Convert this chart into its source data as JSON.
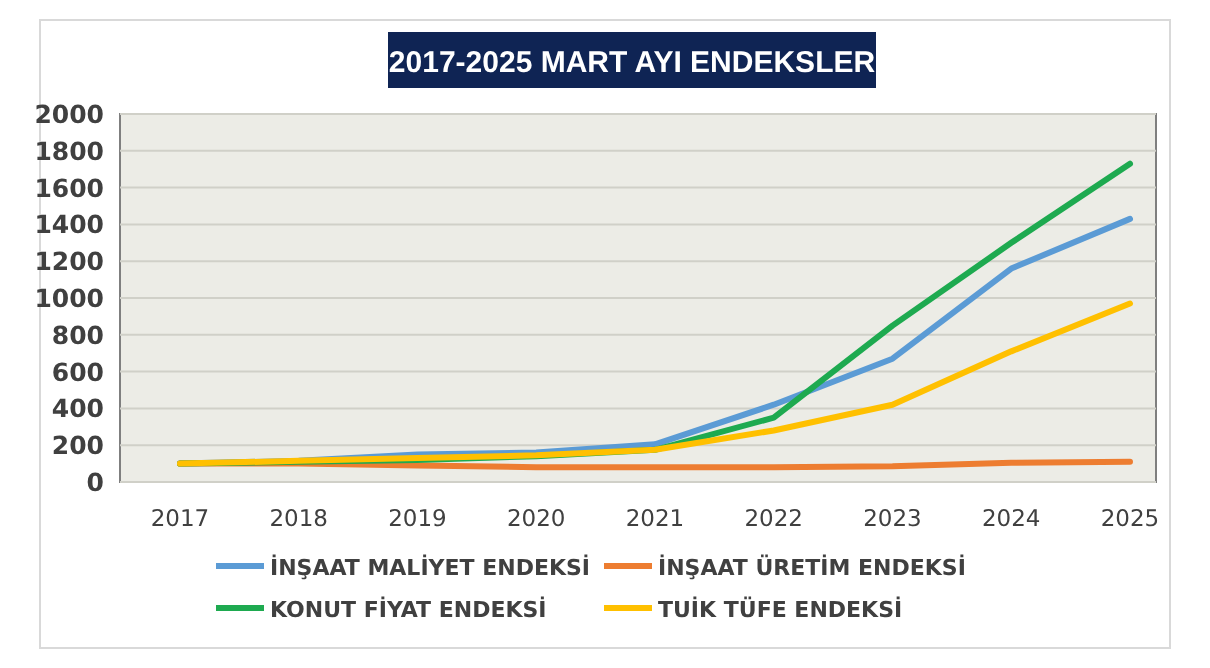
{
  "chart_data": {
    "type": "line",
    "title": "2017-2025 MART AYI ENDEKSLER",
    "categories": [
      "2017",
      "2018",
      "2019",
      "2020",
      "2021",
      "2022",
      "2023",
      "2024",
      "2025"
    ],
    "series": [
      {
        "name": "İNŞAAT MALİYET ENDEKSİ",
        "color": "#5b9bd5",
        "values": [
          100,
          115,
          150,
          160,
          205,
          420,
          670,
          1160,
          1430
        ]
      },
      {
        "name": "İNŞAAT ÜRETİM ENDEKSİ",
        "color": "#ed7d31",
        "values": [
          100,
          100,
          90,
          80,
          80,
          80,
          85,
          105,
          110
        ]
      },
      {
        "name": "KONUT FİYAT ENDEKSİ",
        "color": "#1eaa50",
        "values": [
          100,
          110,
          120,
          140,
          175,
          350,
          850,
          1300,
          1730
        ]
      },
      {
        "name": "TUİK TÜFE ENDEKSİ",
        "color": "#ffc000",
        "values": [
          100,
          115,
          130,
          145,
          175,
          280,
          420,
          710,
          970
        ]
      }
    ],
    "ylim": [
      0,
      2000
    ],
    "yticks": [
      0,
      200,
      400,
      600,
      800,
      1000,
      1200,
      1400,
      1600,
      1800,
      2000
    ],
    "grid": "y",
    "legend": "bottom",
    "marker": "none",
    "line_style": "solid"
  }
}
